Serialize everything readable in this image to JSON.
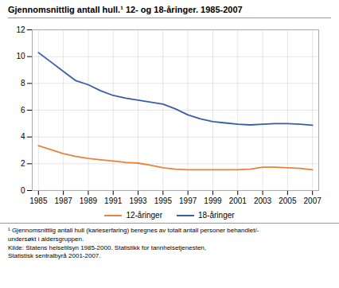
{
  "chart_data": {
    "type": "line",
    "title": "Gjennomsnittlig antall hull.¹ 12- og 18-åringer. 1985-2007",
    "x": [
      1985,
      1986,
      1987,
      1988,
      1989,
      1990,
      1991,
      1992,
      1993,
      1994,
      1995,
      1996,
      1997,
      1998,
      1999,
      2000,
      2001,
      2002,
      2003,
      2004,
      2005,
      2006,
      2007
    ],
    "series": [
      {
        "name": "12-åringer",
        "color": "#E8833A",
        "values": [
          3.35,
          3.05,
          2.75,
          2.55,
          2.4,
          2.3,
          2.2,
          2.1,
          2.05,
          1.9,
          1.7,
          1.6,
          1.55,
          1.55,
          1.55,
          1.55,
          1.55,
          1.6,
          1.75,
          1.75,
          1.7,
          1.65,
          1.55
        ]
      },
      {
        "name": "18-åringer",
        "color": "#3A5DA8",
        "values": [
          10.3,
          9.6,
          8.9,
          8.2,
          7.9,
          7.45,
          7.1,
          6.9,
          6.75,
          6.6,
          6.45,
          6.1,
          5.65,
          5.35,
          5.15,
          5.05,
          4.95,
          4.9,
          4.95,
          5.0,
          5.0,
          4.95,
          4.88
        ]
      }
    ],
    "xlim": [
      1984.5,
      2007.5
    ],
    "xticks": [
      1985,
      1987,
      1989,
      1991,
      1993,
      1995,
      1997,
      1999,
      2001,
      2003,
      2005,
      2007
    ],
    "ylim": [
      0,
      12
    ],
    "yticks": [
      0,
      2,
      4,
      6,
      8,
      10,
      12
    ],
    "grid": true,
    "legend": "bottom",
    "annotations": [
      "¹ Gjennomsnittlig antall hull (karieserfaring) beregnes av totalt antall personer behandlet/-",
      "undersøkt i aldersgruppen.",
      "Kilde: Statens helsetilsyn 1985-2000. Statistikk for tannhelsetjenesten,",
      "Statistisk sentralbyrå 2001-2007."
    ]
  }
}
